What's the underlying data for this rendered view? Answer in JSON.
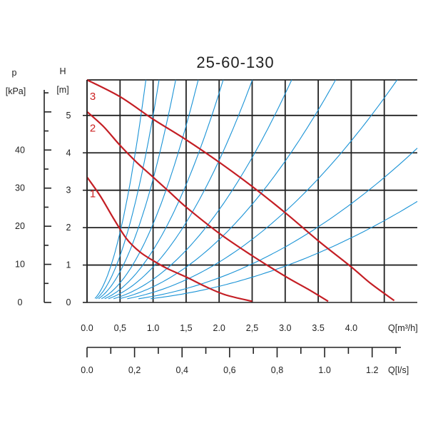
{
  "chart_data": {
    "type": "line",
    "title": "25-60-130",
    "colors": {
      "pump_curve": "#c41e24",
      "system_curve": "#1a93d6",
      "grid": "#222222"
    },
    "grid": true,
    "y_axis_head": {
      "label_top": "H",
      "label_unit": "[m]",
      "range": [
        0,
        5.95
      ],
      "ticks": [
        0,
        1,
        2,
        3,
        4,
        5
      ],
      "tick_labels": [
        "0",
        "1",
        "2",
        "3",
        "4",
        "5"
      ]
    },
    "y_axis_pressure": {
      "label_top": "p",
      "label_unit": "[kPa]",
      "range": [
        0,
        58.4
      ],
      "ticks": [
        0,
        10,
        20,
        30,
        40,
        50
      ],
      "tick_labels": [
        "0",
        "10",
        "20",
        "30",
        "40"
      ]
    },
    "x_axis_flow_m3h": {
      "label": "Q[m³/h]",
      "range": [
        0,
        5.0
      ],
      "ticks": [
        0,
        0.5,
        1.0,
        1.5,
        2.0,
        2.5,
        3.0,
        3.5,
        4.0,
        4.5
      ],
      "tick_labels": [
        "0.0",
        "0,5",
        "1.0",
        "1,5",
        "2.0",
        "2,5",
        "3.0",
        "3.5",
        "4.0"
      ]
    },
    "x_axis_flow_ls": {
      "label": "Q[l/s]",
      "range": [
        0,
        1.39
      ],
      "ticks": [
        0,
        0.1,
        0.2,
        0.3,
        0.4,
        0.5,
        0.6,
        0.7,
        0.8,
        0.9,
        1.0,
        1.1,
        1.2,
        1.3
      ],
      "tick_labels": [
        "0.0",
        "0,2",
        "0,4",
        "0,6",
        "0,8",
        "1.0",
        "1.2"
      ],
      "tick_label_values": [
        0,
        0.2,
        0.4,
        0.6,
        0.8,
        1.0,
        1.2
      ]
    },
    "series": [
      {
        "name": "1",
        "kind": "pump",
        "x": [
          0.0,
          0.2,
          0.4,
          0.6,
          0.8,
          1.0,
          1.2,
          1.5,
          1.8,
          2.1,
          2.5
        ],
        "y": [
          3.35,
          2.85,
          2.25,
          1.7,
          1.35,
          1.12,
          0.92,
          0.68,
          0.42,
          0.2,
          0.03
        ]
      },
      {
        "name": "2",
        "kind": "pump",
        "x": [
          0.0,
          0.25,
          0.5,
          0.75,
          1.0,
          1.25,
          1.5,
          2.0,
          2.5,
          3.0,
          3.35,
          3.65
        ],
        "y": [
          5.1,
          4.7,
          4.2,
          3.75,
          3.35,
          2.95,
          2.55,
          1.85,
          1.25,
          0.7,
          0.35,
          0.03
        ]
      },
      {
        "name": "3",
        "kind": "pump",
        "x": [
          0.0,
          0.5,
          1.0,
          1.5,
          2.0,
          2.5,
          3.0,
          3.5,
          4.0,
          4.3,
          4.65
        ],
        "y": [
          5.95,
          5.5,
          4.9,
          4.35,
          3.75,
          3.1,
          2.4,
          1.65,
          0.95,
          0.5,
          0.05
        ]
      },
      {
        "kind": "system",
        "k": 7.5
      },
      {
        "kind": "system",
        "k": 5.0
      },
      {
        "kind": "system",
        "k": 3.3
      },
      {
        "kind": "system",
        "k": 2.1
      },
      {
        "kind": "system",
        "k": 1.4
      },
      {
        "kind": "system",
        "k": 0.95
      },
      {
        "kind": "system",
        "k": 0.62
      },
      {
        "kind": "system",
        "k": 0.42
      },
      {
        "kind": "system",
        "k": 0.27
      },
      {
        "kind": "system",
        "k": 0.165
      },
      {
        "kind": "system",
        "k": 0.108
      }
    ]
  }
}
